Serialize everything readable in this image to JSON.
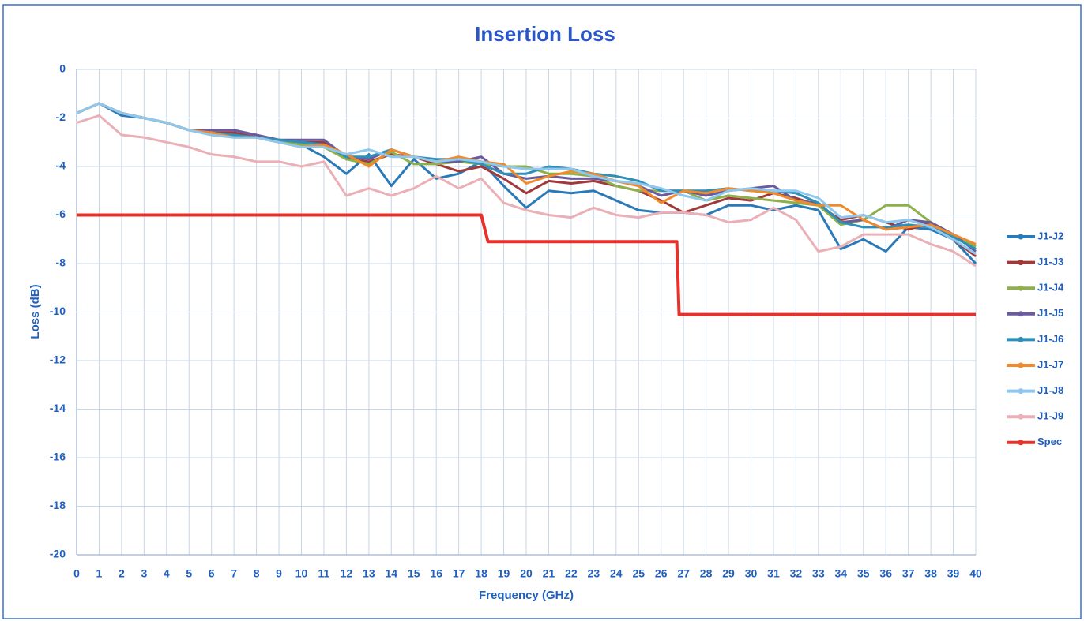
{
  "chart_data": {
    "type": "line",
    "title": "Insertion Loss",
    "xlabel": "Frequency (GHz)",
    "ylabel": "Loss (dB)",
    "x": [
      0,
      1,
      2,
      3,
      4,
      5,
      6,
      7,
      8,
      9,
      10,
      11,
      12,
      13,
      14,
      15,
      16,
      17,
      18,
      19,
      20,
      21,
      22,
      23,
      24,
      25,
      26,
      27,
      28,
      29,
      30,
      31,
      32,
      33,
      34,
      35,
      36,
      37,
      38,
      39,
      40
    ],
    "xlim": [
      0,
      40
    ],
    "xticks": [
      0,
      1,
      2,
      3,
      4,
      5,
      6,
      7,
      8,
      9,
      10,
      11,
      12,
      13,
      14,
      15,
      16,
      17,
      18,
      19,
      20,
      21,
      22,
      23,
      24,
      25,
      26,
      27,
      28,
      29,
      30,
      31,
      32,
      33,
      34,
      35,
      36,
      37,
      38,
      39,
      40
    ],
    "ylim": [
      -20,
      0
    ],
    "yticks": [
      0,
      -2,
      -4,
      -6,
      -8,
      -10,
      -12,
      -14,
      -16,
      -18,
      -20
    ],
    "grid": true,
    "legend": "right",
    "series": [
      {
        "name": "J1-J2",
        "color": "#2a7ab8",
        "values": [
          -1.8,
          -1.4,
          -1.9,
          -2.0,
          -2.2,
          -2.5,
          -2.6,
          -2.7,
          -2.8,
          -3.0,
          -3.1,
          -3.6,
          -4.3,
          -3.5,
          -4.8,
          -3.7,
          -4.5,
          -4.3,
          -3.8,
          -4.8,
          -5.7,
          -5.0,
          -5.1,
          -5.0,
          -5.4,
          -5.8,
          -5.9,
          -5.9,
          -6.0,
          -5.6,
          -5.6,
          -5.8,
          -5.6,
          -5.8,
          -7.4,
          -7.0,
          -7.5,
          -6.5,
          -6.6,
          -7.0,
          -8.0
        ]
      },
      {
        "name": "J1-J3",
        "color": "#a03a3a",
        "values": [
          -1.8,
          -1.4,
          -1.8,
          -2.0,
          -2.2,
          -2.5,
          -2.6,
          -2.6,
          -2.8,
          -2.9,
          -3.0,
          -3.0,
          -3.7,
          -3.8,
          -3.5,
          -3.6,
          -3.9,
          -4.2,
          -4.0,
          -4.5,
          -5.1,
          -4.6,
          -4.7,
          -4.6,
          -4.8,
          -5.0,
          -5.4,
          -5.9,
          -5.6,
          -5.3,
          -5.4,
          -5.1,
          -5.3,
          -5.6,
          -6.2,
          -6.0,
          -6.3,
          -6.6,
          -6.3,
          -7.0,
          -7.7
        ]
      },
      {
        "name": "J1-J4",
        "color": "#8db04a",
        "values": [
          -1.8,
          -1.4,
          -1.8,
          -2.0,
          -2.2,
          -2.5,
          -2.7,
          -2.8,
          -2.8,
          -3.0,
          -3.1,
          -3.2,
          -3.7,
          -3.9,
          -3.4,
          -3.9,
          -3.9,
          -3.8,
          -3.9,
          -4.0,
          -4.0,
          -4.3,
          -4.3,
          -4.4,
          -4.8,
          -5.0,
          -5.0,
          -5.0,
          -5.4,
          -5.2,
          -5.3,
          -5.4,
          -5.5,
          -5.6,
          -6.4,
          -6.2,
          -5.6,
          -5.6,
          -6.3,
          -6.8,
          -7.3
        ]
      },
      {
        "name": "J1-J5",
        "color": "#6a5a9e",
        "values": [
          -1.8,
          -1.4,
          -1.8,
          -2.0,
          -2.2,
          -2.5,
          -2.5,
          -2.5,
          -2.7,
          -2.9,
          -2.9,
          -2.9,
          -3.6,
          -3.7,
          -3.3,
          -3.6,
          -3.8,
          -3.8,
          -3.6,
          -4.3,
          -4.5,
          -4.4,
          -4.5,
          -4.5,
          -4.6,
          -4.8,
          -5.2,
          -5.0,
          -5.2,
          -5.0,
          -4.9,
          -4.8,
          -5.4,
          -5.5,
          -6.3,
          -6.2,
          -6.6,
          -6.2,
          -6.3,
          -6.8,
          -7.5
        ]
      },
      {
        "name": "J1-J6",
        "color": "#2e8fb8",
        "values": [
          -1.8,
          -1.4,
          -1.8,
          -2.0,
          -2.2,
          -2.5,
          -2.6,
          -2.7,
          -2.8,
          -2.9,
          -3.0,
          -3.1,
          -3.6,
          -3.6,
          -3.3,
          -3.6,
          -3.7,
          -3.7,
          -3.9,
          -4.3,
          -4.3,
          -4.0,
          -4.1,
          -4.3,
          -4.4,
          -4.6,
          -5.0,
          -5.0,
          -5.0,
          -4.9,
          -5.0,
          -5.0,
          -5.1,
          -5.5,
          -6.3,
          -6.5,
          -6.5,
          -6.4,
          -6.5,
          -6.9,
          -7.4
        ]
      },
      {
        "name": "J1-J7",
        "color": "#f08a2b",
        "values": [
          -1.8,
          -1.4,
          -1.8,
          -2.0,
          -2.2,
          -2.5,
          -2.6,
          -2.8,
          -2.8,
          -3.0,
          -3.2,
          -3.1,
          -3.5,
          -4.0,
          -3.3,
          -3.6,
          -3.8,
          -3.6,
          -3.8,
          -3.9,
          -4.7,
          -4.4,
          -4.2,
          -4.3,
          -4.6,
          -4.8,
          -5.5,
          -5.0,
          -5.1,
          -4.9,
          -5.0,
          -5.1,
          -5.4,
          -5.6,
          -5.6,
          -6.2,
          -6.6,
          -6.5,
          -6.4,
          -6.8,
          -7.2
        ]
      },
      {
        "name": "J1-J8",
        "color": "#8ec8ee",
        "values": [
          -1.8,
          -1.4,
          -1.8,
          -2.0,
          -2.2,
          -2.5,
          -2.7,
          -2.8,
          -2.8,
          -3.0,
          -3.2,
          -3.2,
          -3.5,
          -3.3,
          -3.6,
          -3.6,
          -3.8,
          -3.7,
          -3.8,
          -4.0,
          -4.1,
          -4.1,
          -4.1,
          -4.4,
          -4.6,
          -4.7,
          -4.9,
          -5.2,
          -5.4,
          -5.0,
          -4.9,
          -5.0,
          -5.0,
          -5.3,
          -6.1,
          -6.0,
          -6.3,
          -6.2,
          -6.5,
          -7.0,
          -7.6
        ]
      },
      {
        "name": "J1-J9",
        "color": "#eab0b5",
        "values": [
          -2.2,
          -1.9,
          -2.7,
          -2.8,
          -3.0,
          -3.2,
          -3.5,
          -3.6,
          -3.8,
          -3.8,
          -4.0,
          -3.8,
          -5.2,
          -4.9,
          -5.2,
          -4.9,
          -4.4,
          -4.9,
          -4.5,
          -5.5,
          -5.8,
          -6.0,
          -6.1,
          -5.7,
          -6.0,
          -6.1,
          -5.9,
          -5.9,
          -6.0,
          -6.3,
          -6.2,
          -5.7,
          -6.2,
          -7.5,
          -7.3,
          -6.8,
          -6.8,
          -6.8,
          -7.2,
          -7.5,
          -8.1
        ]
      },
      {
        "name": "Spec",
        "color": "#e8312a",
        "x": [
          0,
          18,
          18.3,
          26.7,
          26.8,
          40
        ],
        "values": [
          -6,
          -6,
          -7.1,
          -7.1,
          -10.1,
          -10.1
        ]
      }
    ]
  }
}
